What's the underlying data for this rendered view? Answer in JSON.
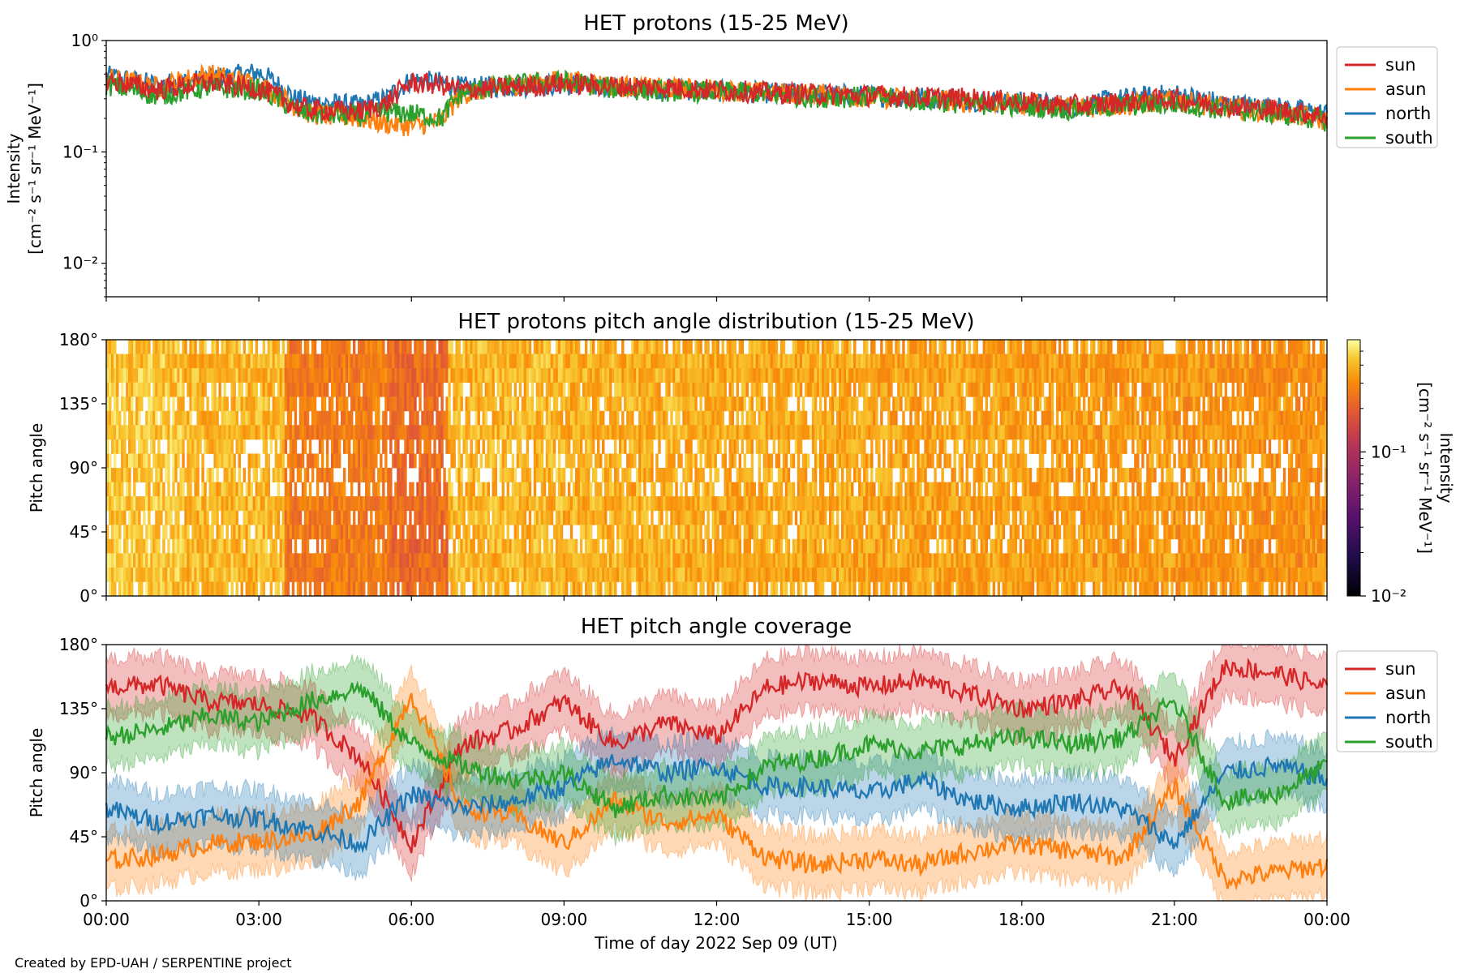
{
  "figure": {
    "credit": "Created by EPD-UAH / SERPENTINE project",
    "xlabel": "Time of day 2022 Sep 09 (UT)",
    "x_ticks": [
      "00:00",
      "03:00",
      "06:00",
      "09:00",
      "12:00",
      "15:00",
      "18:00",
      "21:00",
      "00:00"
    ]
  },
  "colors": {
    "sun": "#d62728",
    "asun": "#ff7f0e",
    "north": "#1f77b4",
    "south": "#2ca02c"
  },
  "chart_data": [
    {
      "id": "intensity",
      "type": "line",
      "title": "HET protons (15-25 MeV)",
      "ylabel_line1": "Intensity",
      "ylabel_line2": "[cm⁻² s⁻¹ sr⁻¹ MeV⁻¹]",
      "yscale": "log",
      "ylim": [
        0.005,
        1.0
      ],
      "xlim_hours": [
        0,
        24
      ],
      "y_ticks": [
        {
          "value": 1.0,
          "label": "10⁰"
        },
        {
          "value": 0.1,
          "label": "10⁻¹"
        },
        {
          "value": 0.01,
          "label": "10⁻²"
        }
      ],
      "legend_position": "outside-top-right",
      "x_hours": [
        0,
        1,
        2,
        3,
        3.7,
        4,
        5,
        5.5,
        6,
        6.6,
        7,
        8,
        9,
        10,
        11,
        12,
        13,
        14,
        15,
        16,
        17,
        18,
        19,
        20,
        21,
        22,
        23,
        24
      ],
      "series": [
        {
          "name": "sun",
          "values": [
            0.44,
            0.36,
            0.42,
            0.37,
            0.26,
            0.24,
            0.23,
            0.27,
            0.42,
            0.4,
            0.36,
            0.38,
            0.41,
            0.39,
            0.38,
            0.36,
            0.34,
            0.33,
            0.32,
            0.31,
            0.3,
            0.28,
            0.26,
            0.28,
            0.3,
            0.26,
            0.24,
            0.21
          ]
        },
        {
          "name": "asun",
          "values": [
            0.46,
            0.38,
            0.5,
            0.4,
            0.26,
            0.22,
            0.2,
            0.18,
            0.17,
            0.19,
            0.33,
            0.4,
            0.44,
            0.39,
            0.37,
            0.36,
            0.34,
            0.33,
            0.31,
            0.3,
            0.28,
            0.27,
            0.25,
            0.26,
            0.29,
            0.25,
            0.23,
            0.19
          ]
        },
        {
          "name": "north",
          "values": [
            0.48,
            0.4,
            0.45,
            0.52,
            0.3,
            0.28,
            0.26,
            0.3,
            0.44,
            0.42,
            0.38,
            0.39,
            0.4,
            0.38,
            0.37,
            0.35,
            0.34,
            0.33,
            0.32,
            0.31,
            0.29,
            0.28,
            0.26,
            0.3,
            0.33,
            0.27,
            0.25,
            0.22
          ]
        },
        {
          "name": "south",
          "values": [
            0.4,
            0.32,
            0.38,
            0.36,
            0.24,
            0.22,
            0.21,
            0.23,
            0.22,
            0.2,
            0.34,
            0.4,
            0.43,
            0.37,
            0.35,
            0.35,
            0.33,
            0.31,
            0.31,
            0.29,
            0.27,
            0.26,
            0.24,
            0.26,
            0.27,
            0.24,
            0.22,
            0.19
          ]
        }
      ]
    },
    {
      "id": "pad",
      "type": "heatmap",
      "title": "HET protons pitch angle distribution (15-25 MeV)",
      "ylabel": "Pitch angle",
      "ylim": [
        0,
        180
      ],
      "xlim_hours": [
        0,
        24
      ],
      "y_ticks": [
        {
          "value": 180,
          "label": "180°"
        },
        {
          "value": 135,
          "label": "135°"
        },
        {
          "value": 90,
          "label": "90°"
        },
        {
          "value": 45,
          "label": "45°"
        },
        {
          "value": 0,
          "label": "0°"
        }
      ],
      "colorbar": {
        "label_line1": "Intensity",
        "label_line2": "[cm⁻² s⁻¹ sr⁻¹ MeV⁻¹]",
        "scale": "log",
        "range": [
          0.01,
          0.6
        ],
        "colormap": "inferno",
        "ticks": [
          {
            "value": 0.1,
            "label": "10⁻¹"
          },
          {
            "value": 0.01,
            "label": "10⁻²"
          }
        ]
      },
      "note_values": "intensity level per time block (log10 units normalised 0-1 over colour range)",
      "time_blocks_hours": [
        0,
        1.5,
        3.5,
        5.5,
        6.7,
        9,
        12,
        15,
        18,
        21,
        22.5,
        24
      ],
      "block_levels": [
        0.92,
        0.9,
        0.8,
        0.76,
        0.9,
        0.89,
        0.88,
        0.87,
        0.86,
        0.85,
        0.84
      ]
    },
    {
      "id": "coverage",
      "type": "line",
      "title": "HET pitch angle coverage",
      "ylabel": "Pitch angle",
      "ylim": [
        0,
        180
      ],
      "xlim_hours": [
        0,
        24
      ],
      "y_ticks": [
        {
          "value": 180,
          "label": "180°"
        },
        {
          "value": 135,
          "label": "135°"
        },
        {
          "value": 90,
          "label": "90°"
        },
        {
          "value": 45,
          "label": "45°"
        },
        {
          "value": 0,
          "label": "0°"
        }
      ],
      "legend_position": "outside-top-right",
      "x_hours": [
        0,
        1,
        2,
        3,
        4,
        5,
        6,
        7,
        8,
        9,
        10,
        11,
        12,
        13,
        14,
        15,
        16,
        17,
        18,
        19,
        20,
        21,
        22,
        23,
        24
      ],
      "series": [
        {
          "name": "sun",
          "values": [
            150,
            152,
            140,
            138,
            130,
            100,
            40,
            110,
            120,
            140,
            110,
            125,
            115,
            150,
            155,
            150,
            155,
            145,
            135,
            140,
            150,
            100,
            165,
            160,
            150
          ]
        },
        {
          "name": "asun",
          "values": [
            28,
            32,
            40,
            42,
            45,
            70,
            145,
            65,
            60,
            40,
            70,
            55,
            60,
            30,
            25,
            30,
            25,
            35,
            40,
            35,
            30,
            80,
            15,
            20,
            25
          ]
        },
        {
          "name": "north",
          "values": [
            65,
            55,
            60,
            58,
            50,
            40,
            75,
            65,
            70,
            80,
            100,
            90,
            95,
            80,
            80,
            75,
            85,
            70,
            65,
            70,
            65,
            40,
            90,
            95,
            85
          ]
        },
        {
          "name": "south",
          "values": [
            115,
            120,
            130,
            125,
            140,
            150,
            110,
            95,
            85,
            90,
            65,
            75,
            70,
            95,
            100,
            110,
            105,
            110,
            115,
            110,
            115,
            140,
            70,
            75,
            95
          ]
        }
      ],
      "band_halfwidth_deg": 20
    }
  ]
}
